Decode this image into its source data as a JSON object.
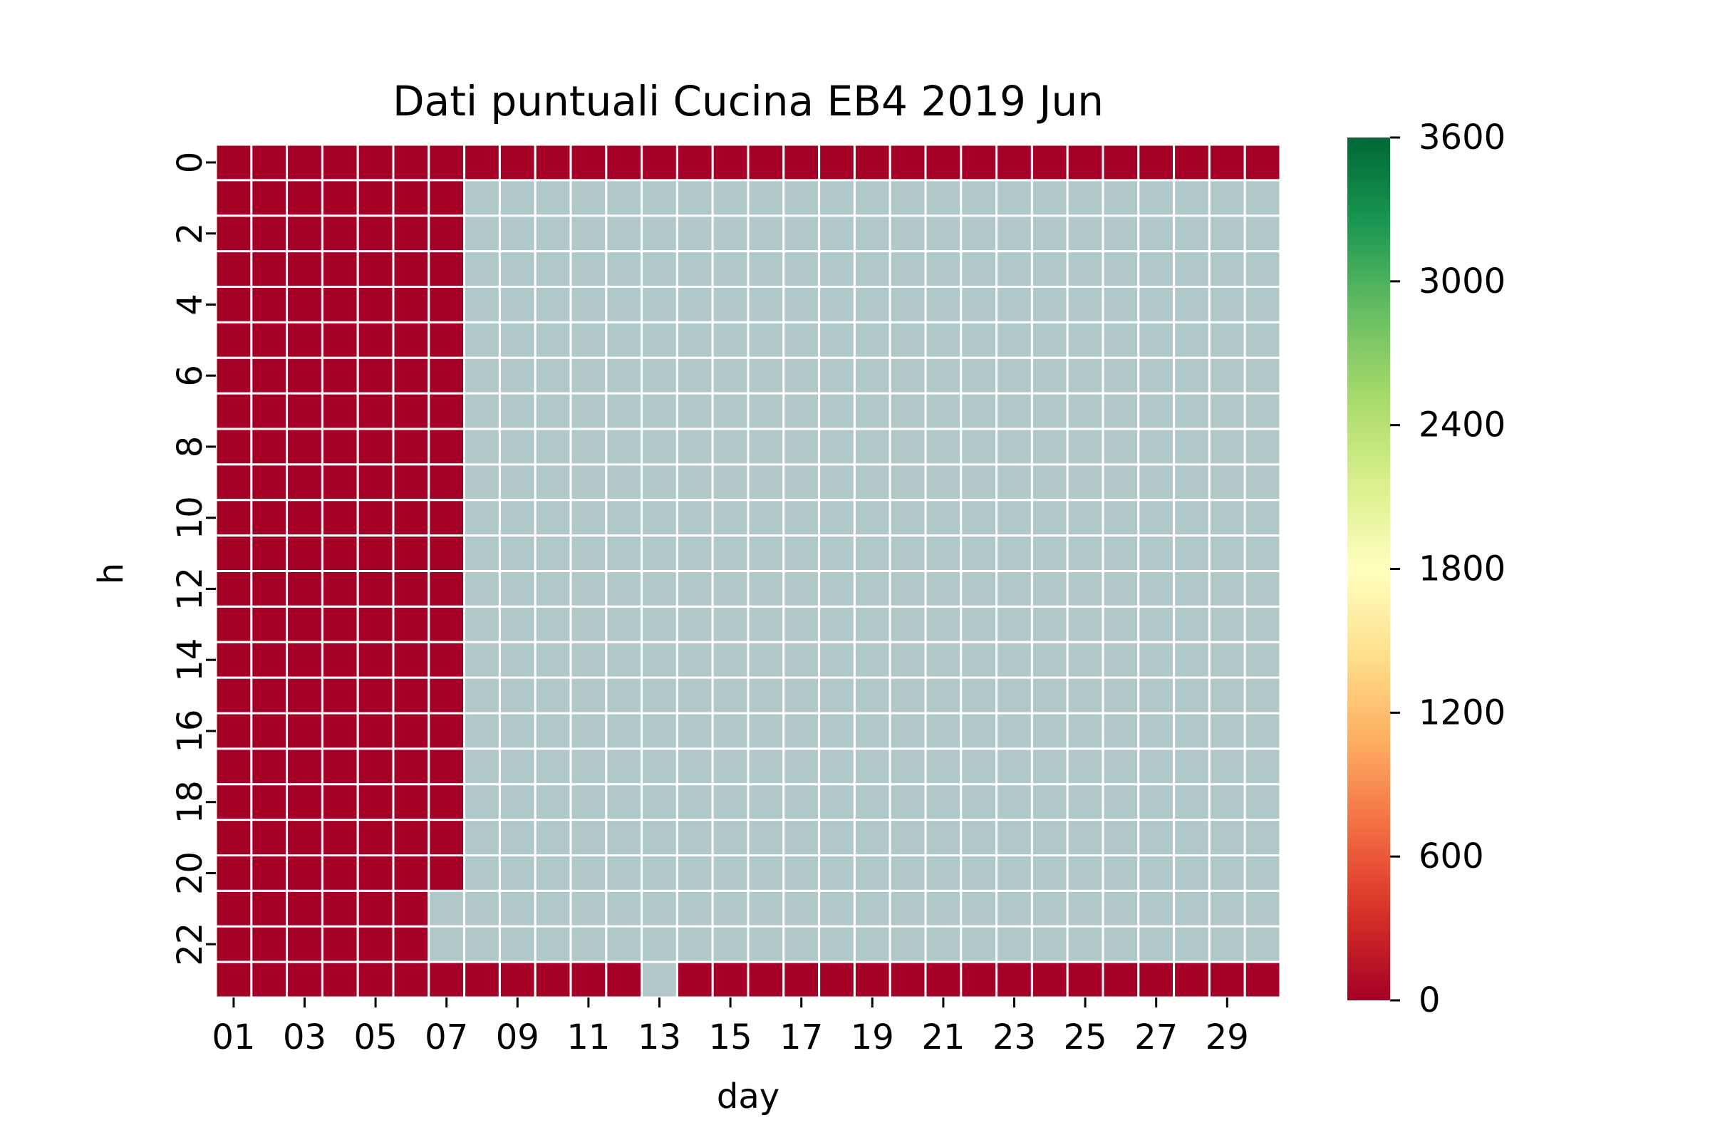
{
  "chart_data": {
    "type": "heatmap",
    "title": "Dati puntuali Cucina EB4 2019 Jun",
    "xlabel": "day",
    "ylabel": "h",
    "x_tick_labels": [
      "01",
      "03",
      "05",
      "07",
      "09",
      "11",
      "13",
      "15",
      "17",
      "19",
      "21",
      "23",
      "25",
      "27",
      "29"
    ],
    "y_tick_labels": [
      "0",
      "2",
      "4",
      "6",
      "8",
      "10",
      "12",
      "14",
      "16",
      "18",
      "20",
      "22"
    ],
    "days": [
      "01",
      "02",
      "03",
      "04",
      "05",
      "06",
      "07",
      "08",
      "09",
      "10",
      "11",
      "12",
      "13",
      "14",
      "15",
      "16",
      "17",
      "18",
      "19",
      "20",
      "21",
      "22",
      "23",
      "24",
      "25",
      "26",
      "27",
      "28",
      "29",
      "30"
    ],
    "hours": [
      0,
      1,
      2,
      3,
      4,
      5,
      6,
      7,
      8,
      9,
      10,
      11,
      12,
      13,
      14,
      15,
      16,
      17,
      18,
      19,
      20,
      21,
      22,
      23
    ],
    "value_range": [
      0,
      3600
    ],
    "missing_color": "#b0c8c8",
    "values": [
      [
        0,
        0,
        0,
        0,
        0,
        0,
        0,
        0,
        0,
        0,
        0,
        0,
        0,
        0,
        0,
        0,
        0,
        0,
        0,
        0,
        0,
        0,
        0,
        0,
        0,
        0,
        0,
        0,
        0,
        0
      ],
      [
        0,
        0,
        0,
        0,
        0,
        0,
        0,
        null,
        null,
        null,
        null,
        null,
        null,
        null,
        null,
        null,
        null,
        null,
        null,
        null,
        null,
        null,
        null,
        null,
        null,
        null,
        null,
        null,
        null,
        null
      ],
      [
        0,
        0,
        0,
        0,
        0,
        0,
        0,
        null,
        null,
        null,
        null,
        null,
        null,
        null,
        null,
        null,
        null,
        null,
        null,
        null,
        null,
        null,
        null,
        null,
        null,
        null,
        null,
        null,
        null,
        null
      ],
      [
        0,
        0,
        0,
        0,
        0,
        0,
        0,
        null,
        null,
        null,
        null,
        null,
        null,
        null,
        null,
        null,
        null,
        null,
        null,
        null,
        null,
        null,
        null,
        null,
        null,
        null,
        null,
        null,
        null,
        null
      ],
      [
        0,
        0,
        0,
        0,
        0,
        0,
        0,
        null,
        null,
        null,
        null,
        null,
        null,
        null,
        null,
        null,
        null,
        null,
        null,
        null,
        null,
        null,
        null,
        null,
        null,
        null,
        null,
        null,
        null,
        null
      ],
      [
        0,
        0,
        0,
        0,
        0,
        0,
        0,
        null,
        null,
        null,
        null,
        null,
        null,
        null,
        null,
        null,
        null,
        null,
        null,
        null,
        null,
        null,
        null,
        null,
        null,
        null,
        null,
        null,
        null,
        null
      ],
      [
        0,
        0,
        0,
        0,
        0,
        0,
        0,
        null,
        null,
        null,
        null,
        null,
        null,
        null,
        null,
        null,
        null,
        null,
        null,
        null,
        null,
        null,
        null,
        null,
        null,
        null,
        null,
        null,
        null,
        null
      ],
      [
        0,
        0,
        0,
        0,
        0,
        0,
        0,
        null,
        null,
        null,
        null,
        null,
        null,
        null,
        null,
        null,
        null,
        null,
        null,
        null,
        null,
        null,
        null,
        null,
        null,
        null,
        null,
        null,
        null,
        null
      ],
      [
        0,
        0,
        0,
        0,
        0,
        0,
        0,
        null,
        null,
        null,
        null,
        null,
        null,
        null,
        null,
        null,
        null,
        null,
        null,
        null,
        null,
        null,
        null,
        null,
        null,
        null,
        null,
        null,
        null,
        null
      ],
      [
        0,
        0,
        0,
        0,
        0,
        0,
        0,
        null,
        null,
        null,
        null,
        null,
        null,
        null,
        null,
        null,
        null,
        null,
        null,
        null,
        null,
        null,
        null,
        null,
        null,
        null,
        null,
        null,
        null,
        null
      ],
      [
        0,
        0,
        0,
        0,
        0,
        0,
        0,
        null,
        null,
        null,
        null,
        null,
        null,
        null,
        null,
        null,
        null,
        null,
        null,
        null,
        null,
        null,
        null,
        null,
        null,
        null,
        null,
        null,
        null,
        null
      ],
      [
        0,
        0,
        0,
        0,
        0,
        0,
        0,
        null,
        null,
        null,
        null,
        null,
        null,
        null,
        null,
        null,
        null,
        null,
        null,
        null,
        null,
        null,
        null,
        null,
        null,
        null,
        null,
        null,
        null,
        null
      ],
      [
        0,
        0,
        0,
        0,
        0,
        0,
        0,
        null,
        null,
        null,
        null,
        null,
        null,
        null,
        null,
        null,
        null,
        null,
        null,
        null,
        null,
        null,
        null,
        null,
        null,
        null,
        null,
        null,
        null,
        null
      ],
      [
        0,
        0,
        0,
        0,
        0,
        0,
        0,
        null,
        null,
        null,
        null,
        null,
        null,
        null,
        null,
        null,
        null,
        null,
        null,
        null,
        null,
        null,
        null,
        null,
        null,
        null,
        null,
        null,
        null,
        null
      ],
      [
        0,
        0,
        0,
        0,
        0,
        0,
        0,
        null,
        null,
        null,
        null,
        null,
        null,
        null,
        null,
        null,
        null,
        null,
        null,
        null,
        null,
        null,
        null,
        null,
        null,
        null,
        null,
        null,
        null,
        null
      ],
      [
        0,
        0,
        0,
        0,
        0,
        0,
        0,
        null,
        null,
        null,
        null,
        null,
        null,
        null,
        null,
        null,
        null,
        null,
        null,
        null,
        null,
        null,
        null,
        null,
        null,
        null,
        null,
        null,
        null,
        null
      ],
      [
        0,
        0,
        0,
        0,
        0,
        0,
        0,
        null,
        null,
        null,
        null,
        null,
        null,
        null,
        null,
        null,
        null,
        null,
        null,
        null,
        null,
        null,
        null,
        null,
        null,
        null,
        null,
        null,
        null,
        null
      ],
      [
        0,
        0,
        0,
        0,
        0,
        0,
        0,
        null,
        null,
        null,
        null,
        null,
        null,
        null,
        null,
        null,
        null,
        null,
        null,
        null,
        null,
        null,
        null,
        null,
        null,
        null,
        null,
        null,
        null,
        null
      ],
      [
        0,
        0,
        0,
        0,
        0,
        0,
        0,
        null,
        null,
        null,
        null,
        null,
        null,
        null,
        null,
        null,
        null,
        null,
        null,
        null,
        null,
        null,
        null,
        null,
        null,
        null,
        null,
        null,
        null,
        null
      ],
      [
        0,
        0,
        0,
        0,
        0,
        0,
        0,
        null,
        null,
        null,
        null,
        null,
        null,
        null,
        null,
        null,
        null,
        null,
        null,
        null,
        null,
        null,
        null,
        null,
        null,
        null,
        null,
        null,
        null,
        null
      ],
      [
        0,
        0,
        0,
        0,
        0,
        0,
        0,
        null,
        null,
        null,
        null,
        null,
        null,
        null,
        null,
        null,
        null,
        null,
        null,
        null,
        null,
        null,
        null,
        null,
        null,
        null,
        null,
        null,
        null,
        null
      ],
      [
        0,
        0,
        0,
        0,
        0,
        0,
        null,
        null,
        null,
        null,
        null,
        null,
        null,
        null,
        null,
        null,
        null,
        null,
        null,
        null,
        null,
        null,
        null,
        null,
        null,
        null,
        null,
        null,
        null,
        null
      ],
      [
        0,
        0,
        0,
        0,
        0,
        0,
        null,
        null,
        null,
        null,
        null,
        null,
        null,
        null,
        null,
        null,
        null,
        null,
        null,
        null,
        null,
        null,
        null,
        null,
        null,
        null,
        null,
        null,
        null,
        null
      ],
      [
        0,
        0,
        0,
        0,
        0,
        0,
        0,
        0,
        0,
        0,
        0,
        0,
        null,
        0,
        0,
        0,
        0,
        0,
        0,
        0,
        0,
        0,
        0,
        0,
        0,
        0,
        0,
        0,
        0,
        0
      ]
    ],
    "colorbar": {
      "colormap": "RdYlGn",
      "ticks": [
        0,
        600,
        1200,
        1800,
        2400,
        3000,
        3600
      ],
      "tick_labels": [
        "0",
        "600",
        "1200",
        "1800",
        "2400",
        "3000",
        "3600"
      ]
    },
    "grid": false,
    "legend": "colorbar-right"
  }
}
